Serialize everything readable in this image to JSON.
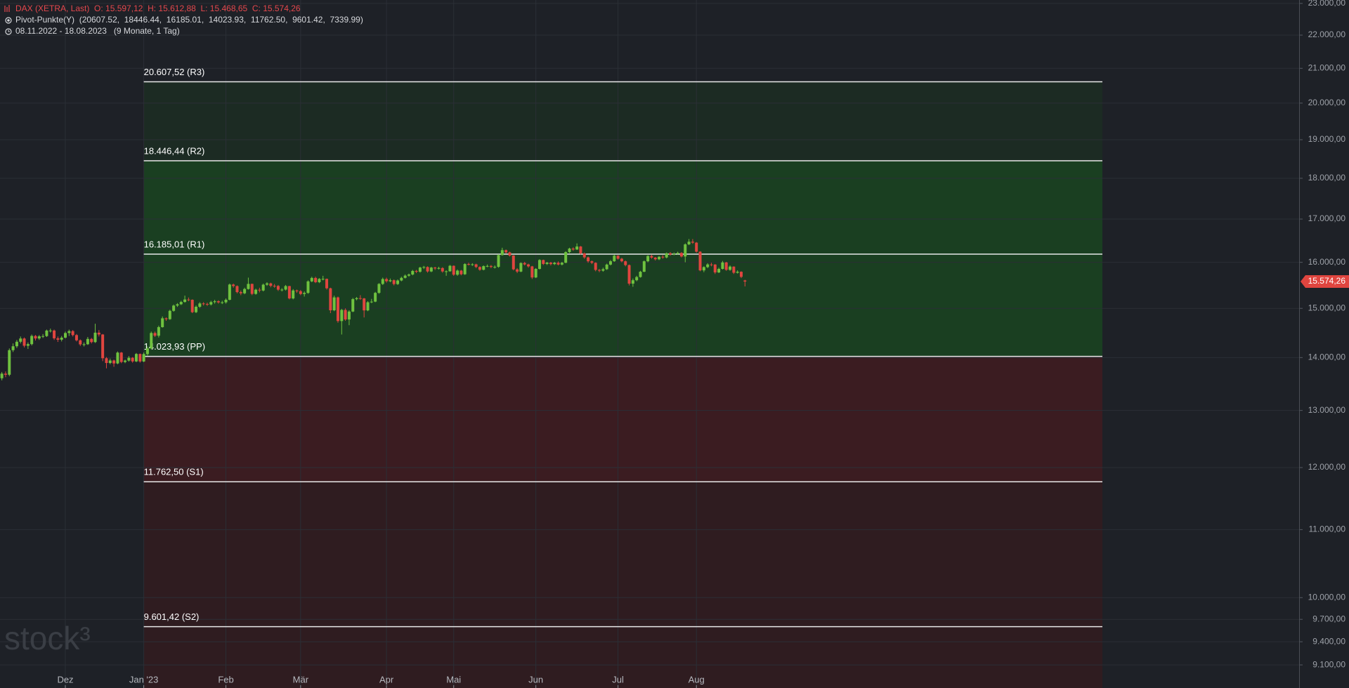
{
  "chart_data": {
    "type": "candlestick",
    "header": "DAX (XETRA, Last)  O: 15.597,12  H: 15.612,88  L: 15.468,65  C: 15.574,26",
    "indicator": "Pivot-Punkte(Y)  (20607.52,  18446.44,  16185.01,  14023.93,  11762.50,  9601.42,  7339.99)",
    "period": "08.11.2022 - 18.08.2023   (9 Monate, 1 Tag)",
    "watermark": "stock³",
    "last_price": {
      "value": 15574.26,
      "label": "15.574,26"
    },
    "up_color": "#6fc23f",
    "down_color": "#e0453f",
    "log_scale": true,
    "grid": true,
    "xlim": [
      -0.5,
      347.4
    ],
    "xticks": [
      {
        "value": 17,
        "label": "Dez"
      },
      {
        "value": 38,
        "label": "Jan '23"
      },
      {
        "value": 60,
        "label": "Feb"
      },
      {
        "value": 80,
        "label": "Mär"
      },
      {
        "value": 103,
        "label": "Apr"
      },
      {
        "value": 121,
        "label": "Mai"
      },
      {
        "value": 143,
        "label": "Jun"
      },
      {
        "value": 165,
        "label": "Jul"
      },
      {
        "value": 186,
        "label": "Aug"
      }
    ],
    "ylim": [
      8810,
      23110
    ],
    "yticks": [
      {
        "value": 23000,
        "label": "23.000,00"
      },
      {
        "value": 22000,
        "label": "22.000,00"
      },
      {
        "value": 21000,
        "label": "21.000,00"
      },
      {
        "value": 20000,
        "label": "20.000,00"
      },
      {
        "value": 19000,
        "label": "19.000,00"
      },
      {
        "value": 18000,
        "label": "18.000,00"
      },
      {
        "value": 17000,
        "label": "17.000,00"
      },
      {
        "value": 16000,
        "label": "16.000,00"
      },
      {
        "value": 15000,
        "label": "15.000,00"
      },
      {
        "value": 14000,
        "label": "14.000,00"
      },
      {
        "value": 13000,
        "label": "13.000,00"
      },
      {
        "value": 12000,
        "label": "12.000,00"
      },
      {
        "value": 11000,
        "label": "11.000,00"
      },
      {
        "value": 10000,
        "label": "10.000,00"
      },
      {
        "value": 9700,
        "label": "9.700,00"
      },
      {
        "value": 9400,
        "label": "9.400,00"
      },
      {
        "value": 9100,
        "label": "9.100,00"
      }
    ],
    "pivots": [
      {
        "value": 20607.52,
        "label": "20.607,52 (R3)"
      },
      {
        "value": 18446.44,
        "label": "18.446,44 (R2)"
      },
      {
        "value": 16185.01,
        "label": "16.185,01 (R1)"
      },
      {
        "value": 14023.93,
        "label": "14.023,93 (PP)"
      },
      {
        "value": 11762.5,
        "label": "11.762,50 (S1)"
      },
      {
        "value": 9601.42,
        "label": "9.601,42 (S2)"
      }
    ],
    "open": [
      13600,
      13688,
      13667,
      14146,
      14224,
      14314,
      14379,
      14234,
      14266,
      14431,
      14380,
      14423,
      14428,
      14540,
      14541,
      14383,
      14355,
      14397,
      14490,
      14529,
      14448,
      14343,
      14261,
      14264,
      14371,
      14307,
      14497,
      14460,
      13987,
      13894,
      13943,
      13885,
      14098,
      13914,
      13941,
      13996,
      13925,
      14071,
      13924,
      14069,
      14181,
      14490,
      14436,
      14610,
      14792,
      14774,
      14948,
      15058,
      15086,
      15135,
      15187,
      15181,
      14920,
      15033,
      15103,
      15093,
      15082,
      15132,
      15150,
      15126,
      15128,
      15181,
      15509,
      15476,
      15345,
      15320,
      15412,
      15523,
      15307,
      15397,
      15380,
      15506,
      15534,
      15482,
      15478,
      15398,
      15400,
      15476,
      15210,
      15381,
      15365,
      15305,
      15328,
      15578,
      15653,
      15560,
      15632,
      15633,
      15428,
      14959,
      15232,
      14735,
      14967,
      14768,
      14933,
      15195,
      15216,
      15210,
      14957,
      15128,
      15142,
      15329,
      15522,
      15629,
      15581,
      15603,
      15520,
      15597,
      15655,
      15704,
      15729,
      15808,
      15790,
      15882,
      15895,
      15796,
      15882,
      15863,
      15872,
      15796,
      15800,
      15922,
      15725,
      15815,
      15734,
      15961,
      15952,
      15955,
      15896,
      15834,
      15914,
      15918,
      15897,
      15898,
      16163,
      16275,
      16224,
      16152,
      15843,
      15793,
      15984,
      15953,
      15909,
      15664,
      15853,
      16051,
      15964,
      15993,
      15960,
      15990,
      15950,
      15990,
      16230,
      16311,
      16290,
      16358,
      16201,
      16111,
      16023,
      15989,
      15830,
      15813,
      15846,
      15949,
      16024,
      16148,
      16081,
      16023,
      15938,
      15529,
      15603,
      15673,
      15790,
      16023,
      16142,
      16106,
      16068,
      16125,
      16109,
      16204,
      16177,
      16191,
      16211,
      16131,
      16407,
      16469,
      16447,
      16240,
      15820,
      15893,
      15952,
      15950,
      15775,
      15853,
      15997,
      15832,
      15904,
      15768,
      15789,
      15597.12
    ],
    "high": [
      13720,
      13730,
      14180,
      14280,
      14350,
      14420,
      14400,
      14300,
      14460,
      14450,
      14450,
      14470,
      14560,
      14580,
      14560,
      14420,
      14430,
      14520,
      14560,
      14550,
      14470,
      14360,
      14300,
      14410,
      14390,
      14680,
      14550,
      14470,
      14010,
      13980,
      13960,
      14120,
      14110,
      13960,
      14030,
      14010,
      14090,
      14080,
      14100,
      14220,
      14520,
      14520,
      14640,
      14830,
      14810,
      14970,
      15080,
      15110,
      15160,
      15270,
      15230,
      15190,
      15060,
      15130,
      15130,
      15120,
      15160,
      15180,
      15170,
      15160,
      15210,
      15530,
      15530,
      15490,
      15380,
      15440,
      15660,
      15530,
      15420,
      15440,
      15530,
      15560,
      15550,
      15520,
      15500,
      15430,
      15500,
      15480,
      15410,
      15400,
      15390,
      15360,
      15600,
      15680,
      15680,
      15650,
      15700,
      15640,
      15440,
      15270,
      15250,
      14990,
      15000,
      14960,
      15220,
      15240,
      15280,
      15220,
      15150,
      15200,
      15350,
      15540,
      15660,
      15660,
      15640,
      15620,
      15620,
      15680,
      15730,
      15750,
      15830,
      15830,
      15900,
      15920,
      15910,
      15900,
      15900,
      15900,
      15890,
      15820,
      15940,
      15930,
      15840,
      15830,
      15980,
      15990,
      15980,
      15970,
      15910,
      15930,
      15950,
      15940,
      15930,
      16180,
      16330,
      16290,
      16240,
      16160,
      15870,
      16000,
      16010,
      15970,
      15920,
      15870,
      16070,
      16060,
      16010,
      16010,
      16010,
      16020,
      16010,
      16250,
      16330,
      16340,
      16430,
      16370,
      16220,
      16130,
      16040,
      16000,
      15850,
      15880,
      15970,
      16050,
      16170,
      16160,
      16100,
      16040,
      15950,
      15640,
      15700,
      15810,
      16040,
      16160,
      16170,
      16120,
      16140,
      16160,
      16220,
      16230,
      16220,
      16240,
      16230,
      16430,
      16530,
      16530,
      16460,
      16250,
      15910,
      15980,
      15990,
      15960,
      15880,
      16030,
      16010,
      15930,
      15910,
      15820,
      15800,
      15612.88
    ],
    "low": [
      13560,
      13620,
      13640,
      14110,
      14190,
      14280,
      14200,
      14170,
      14240,
      14340,
      14350,
      14390,
      14410,
      14500,
      14350,
      14310,
      14320,
      14380,
      14430,
      14420,
      14320,
      14230,
      14220,
      14250,
      14280,
      14290,
      14420,
      13930,
      13790,
      13870,
      13820,
      13870,
      13890,
      13890,
      13920,
      13900,
      13910,
      13900,
      13910,
      14040,
      14160,
      14410,
      14400,
      14600,
      14740,
      14760,
      14930,
      15030,
      15070,
      15120,
      15150,
      14900,
      14900,
      15010,
      15060,
      15050,
      15060,
      15100,
      15100,
      15090,
      15100,
      15170,
      15440,
      15320,
      15280,
      15300,
      15400,
      15280,
      15290,
      15340,
      15360,
      15480,
      15450,
      15440,
      15370,
      15360,
      15380,
      15190,
      15190,
      15330,
      15280,
      15250,
      15310,
      15560,
      15540,
      15540,
      15600,
      15400,
      14900,
      14940,
      14700,
      14460,
      14740,
      14650,
      14920,
      15170,
      15180,
      14810,
      14940,
      15110,
      15130,
      15310,
      15500,
      15550,
      15560,
      15490,
      15500,
      15580,
      15640,
      15680,
      15710,
      15760,
      15770,
      15850,
      15770,
      15780,
      15830,
      15840,
      15770,
      15700,
      15790,
      15700,
      15700,
      15710,
      15720,
      15930,
      15920,
      15870,
      15810,
      15820,
      15890,
      15870,
      15860,
      15880,
      16150,
      16200,
      16130,
      15820,
      15760,
      15780,
      15930,
      15880,
      15630,
      15650,
      15840,
      15940,
      15940,
      15930,
      15940,
      15930,
      15930,
      15980,
      16210,
      16260,
      16280,
      16180,
      16080,
      15990,
      15960,
      15800,
      15780,
      15790,
      15830,
      15930,
      16010,
      16060,
      16000,
      15910,
      15490,
      15460,
      15580,
      15660,
      15780,
      16000,
      16080,
      16040,
      16050,
      16080,
      16090,
      16150,
      16160,
      16180,
      16110,
      16000,
      16390,
      16420,
      16220,
      15800,
      15780,
      15870,
      15910,
      15740,
      15760,
      15840,
      15810,
      15810,
      15740,
      15750,
      15650,
      15468.65
    ],
    "close": [
      13688,
      13667,
      14146,
      14224,
      14314,
      14379,
      14234,
      14266,
      14431,
      14380,
      14423,
      14428,
      14540,
      14541,
      14383,
      14355,
      14397,
      14490,
      14529,
      14448,
      14343,
      14261,
      14264,
      14371,
      14307,
      14497,
      14460,
      13987,
      13894,
      13943,
      13885,
      14098,
      13914,
      13941,
      13996,
      13925,
      14071,
      13924,
      14069,
      14181,
      14490,
      14436,
      14610,
      14792,
      14774,
      14948,
      15058,
      15086,
      15135,
      15187,
      15181,
      14920,
      15033,
      15103,
      15093,
      15082,
      15132,
      15150,
      15126,
      15128,
      15181,
      15509,
      15476,
      15345,
      15320,
      15412,
      15523,
      15307,
      15397,
      15380,
      15506,
      15534,
      15482,
      15478,
      15398,
      15400,
      15476,
      15210,
      15381,
      15365,
      15305,
      15328,
      15578,
      15653,
      15560,
      15632,
      15633,
      15428,
      14959,
      15232,
      14735,
      14967,
      14768,
      14933,
      15195,
      15216,
      15210,
      14957,
      15128,
      15142,
      15329,
      15522,
      15629,
      15581,
      15603,
      15520,
      15597,
      15655,
      15704,
      15729,
      15808,
      15790,
      15882,
      15895,
      15796,
      15882,
      15863,
      15872,
      15796,
      15800,
      15922,
      15725,
      15815,
      15734,
      15961,
      15952,
      15955,
      15896,
      15834,
      15914,
      15918,
      15897,
      15898,
      16163,
      16275,
      16224,
      16152,
      15843,
      15793,
      15984,
      15953,
      15909,
      15664,
      15853,
      16051,
      15964,
      15993,
      15960,
      15990,
      15950,
      15990,
      16230,
      16311,
      16290,
      16358,
      16201,
      16111,
      16023,
      15989,
      15830,
      15813,
      15846,
      15949,
      16024,
      16148,
      16081,
      16023,
      15938,
      15529,
      15603,
      15673,
      15790,
      16023,
      16142,
      16106,
      16068,
      16125,
      16109,
      16204,
      16177,
      16191,
      16211,
      16131,
      16407,
      16469,
      16447,
      16240,
      15820,
      15893,
      15952,
      15950,
      15775,
      15853,
      15997,
      15832,
      15904,
      15768,
      15789,
      15677,
      15574.26
    ]
  }
}
